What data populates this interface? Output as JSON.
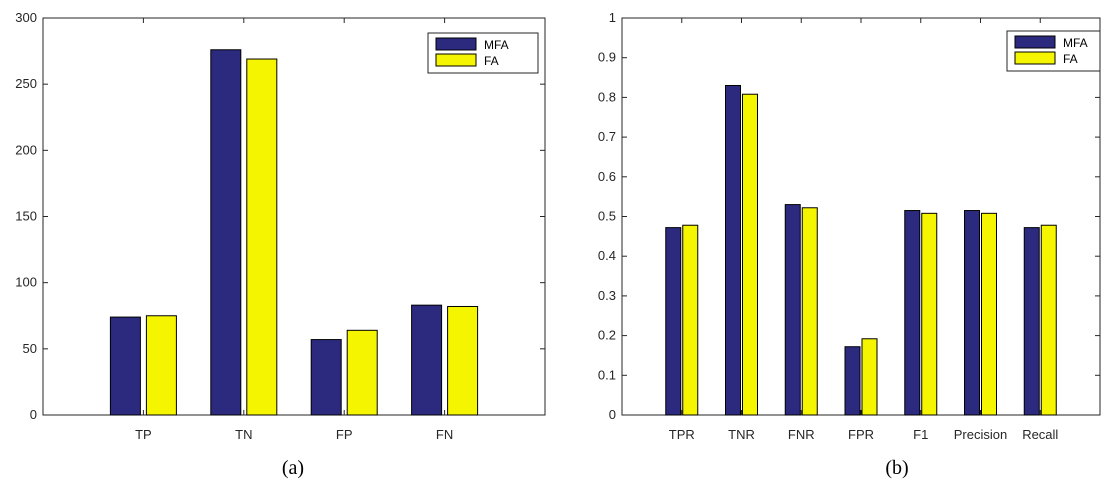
{
  "chart_data": [
    {
      "type": "bar",
      "caption": "(a)",
      "categories": [
        "TP",
        "TN",
        "FP",
        "FN"
      ],
      "ylim": [
        0,
        300
      ],
      "yticks": [
        0,
        50,
        100,
        150,
        200,
        250,
        300
      ],
      "legend_position": "top-right",
      "series": [
        {
          "name": "MFA",
          "color": "#2b2a7f",
          "values": [
            74,
            276,
            57,
            83
          ]
        },
        {
          "name": "FA",
          "color": "#f5f500",
          "values": [
            75,
            269,
            64,
            82
          ]
        }
      ]
    },
    {
      "type": "bar",
      "caption": "(b)",
      "categories": [
        "TPR",
        "TNR",
        "FNR",
        "FPR",
        "F1",
        "Precision",
        "Recall"
      ],
      "ylim": [
        0,
        1
      ],
      "yticks": [
        0,
        0.1,
        0.2,
        0.3,
        0.4,
        0.5,
        0.6,
        0.7,
        0.8,
        0.9,
        1
      ],
      "legend_position": "top-right",
      "series": [
        {
          "name": "MFA",
          "color": "#2b2a7f",
          "values": [
            0.472,
            0.83,
            0.53,
            0.172,
            0.515,
            0.515,
            0.472
          ]
        },
        {
          "name": "FA",
          "color": "#f5f500",
          "values": [
            0.478,
            0.808,
            0.522,
            0.192,
            0.508,
            0.508,
            0.478
          ]
        }
      ]
    }
  ]
}
